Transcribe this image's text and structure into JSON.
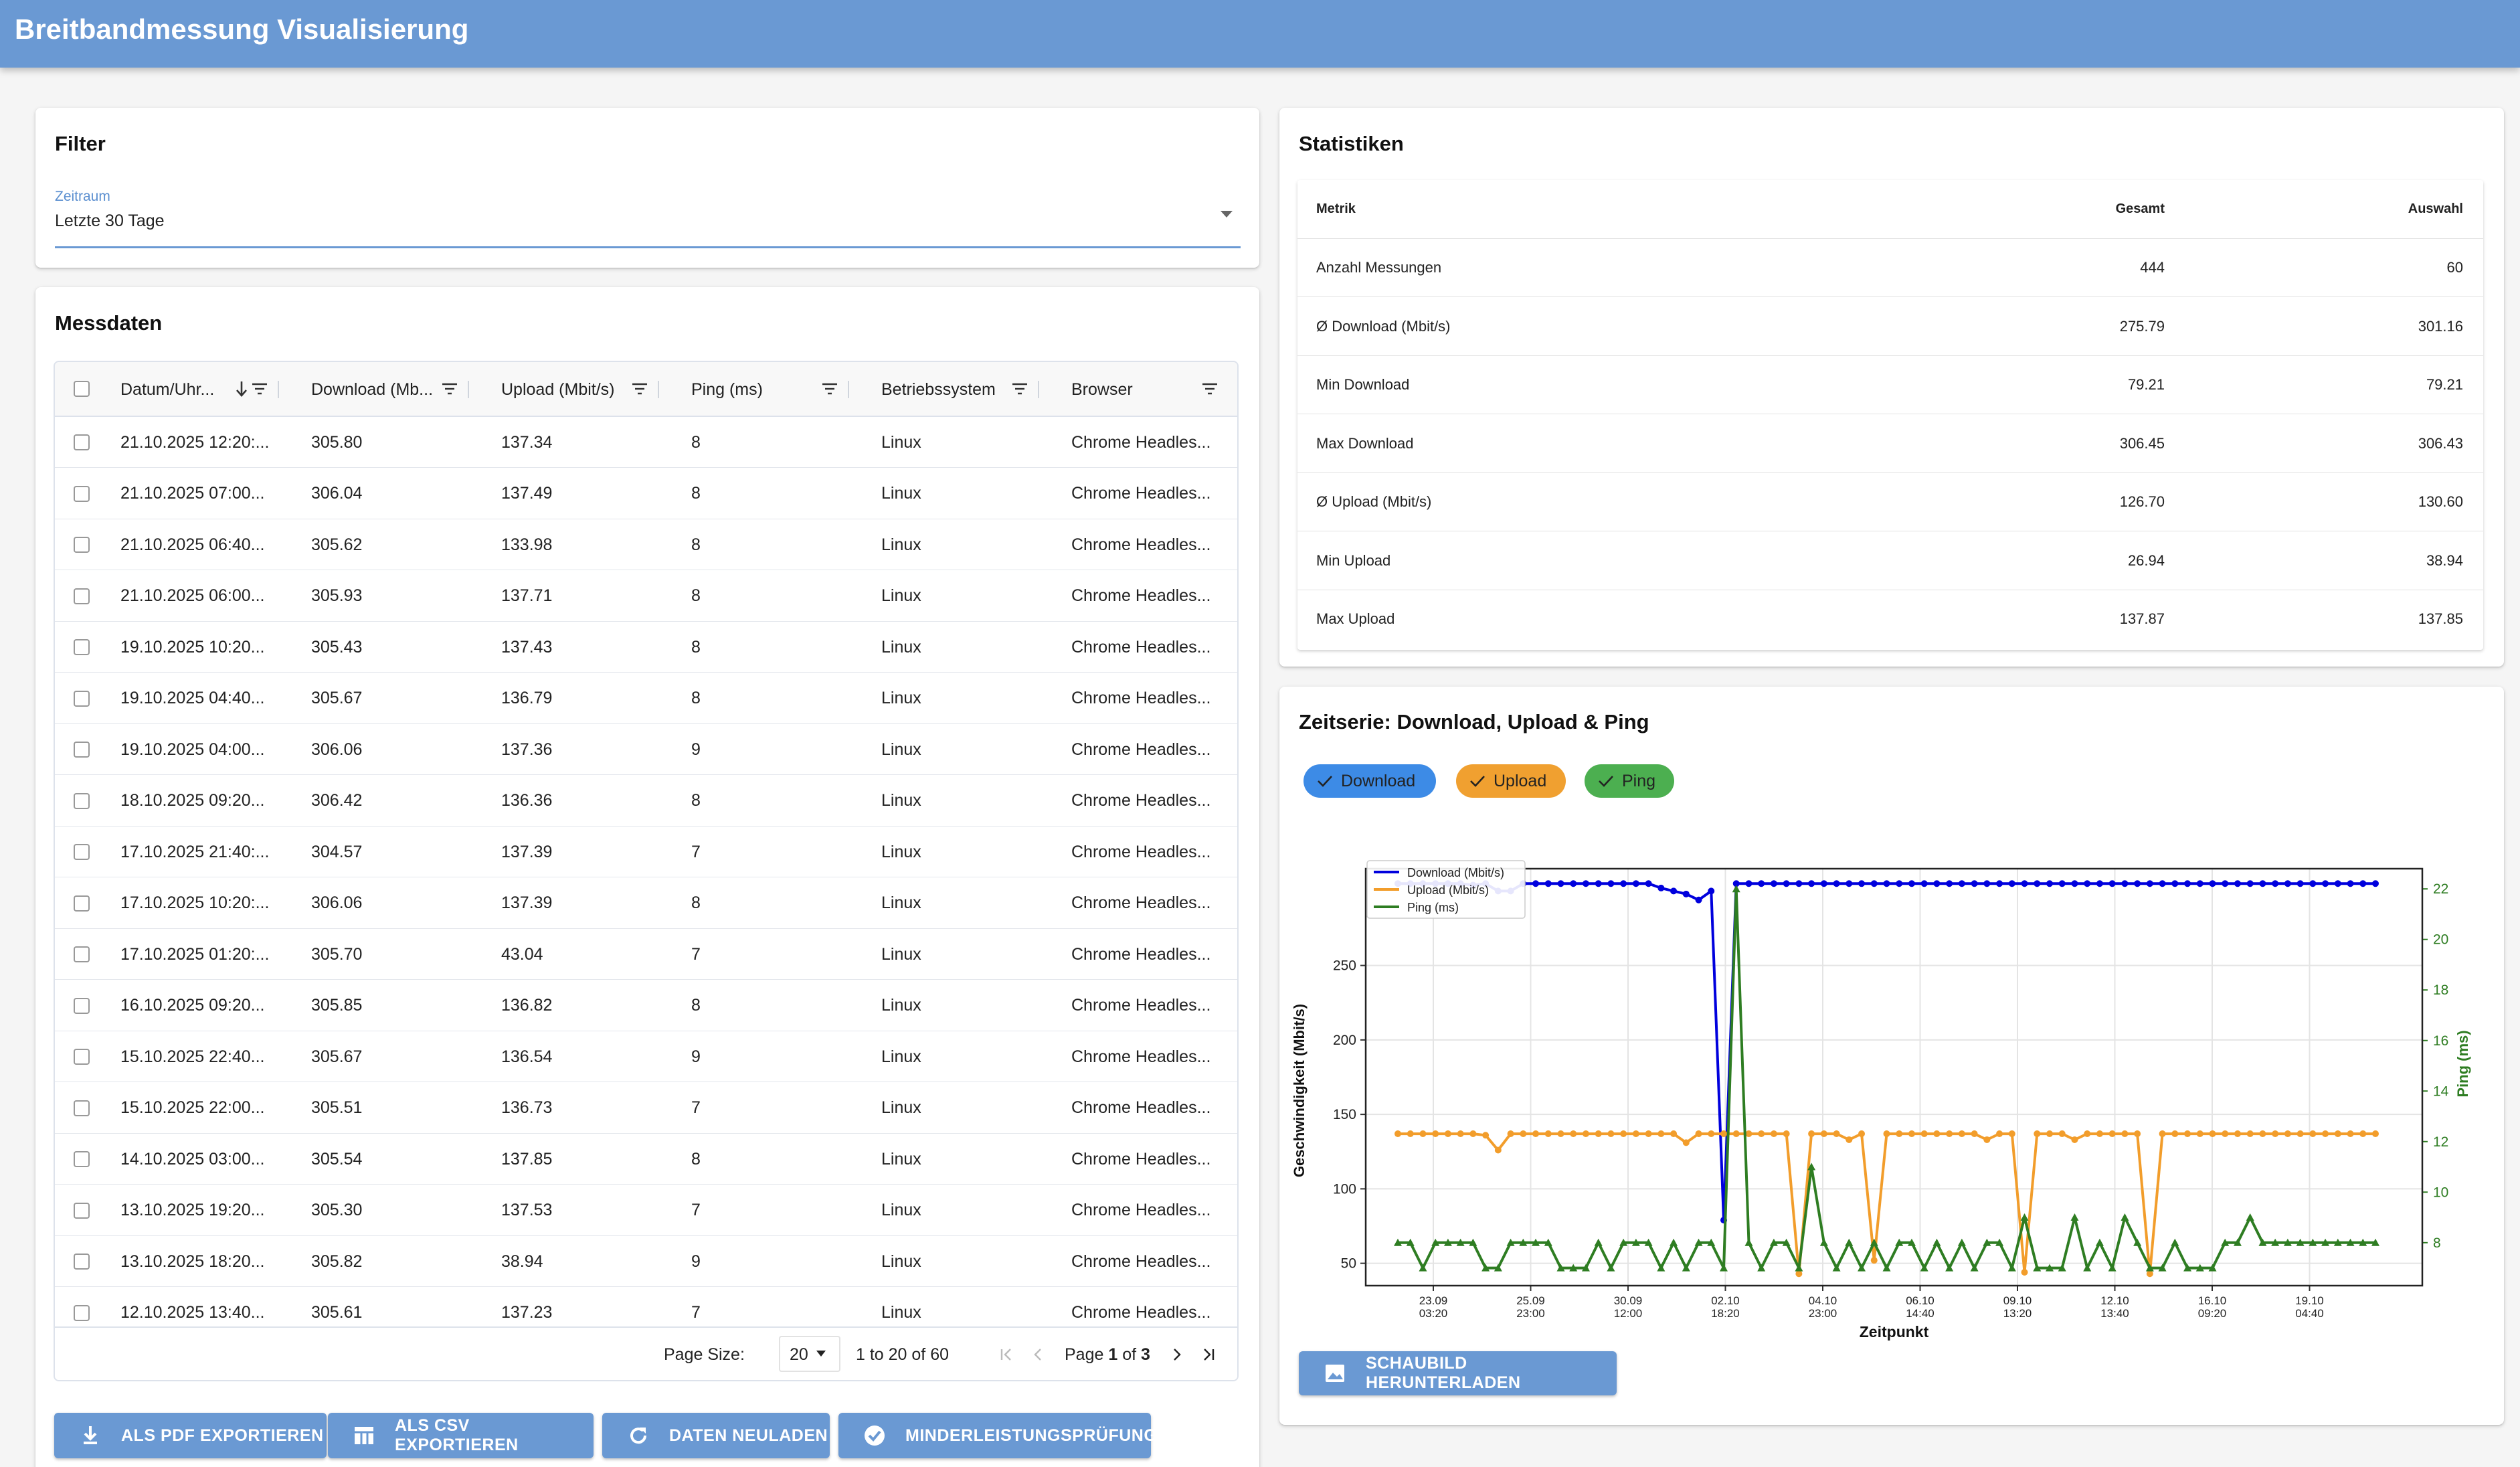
{
  "app": {
    "title": "Breitbandmessung Visualisierung"
  },
  "filter": {
    "title": "Filter",
    "label": "Zeitraum",
    "value": "Letzte 30 Tage"
  },
  "messdaten": {
    "title": "Messdaten",
    "columns": [
      "Datum/Uhr...",
      "Download (Mb...",
      "Upload (Mbit/s)",
      "Ping (ms)",
      "Betriebssystem",
      "Browser"
    ],
    "rows": [
      [
        "21.10.2025 12:20:...",
        "305.80",
        "137.34",
        "8",
        "Linux",
        "Chrome Headles..."
      ],
      [
        "21.10.2025 07:00...",
        "306.04",
        "137.49",
        "8",
        "Linux",
        "Chrome Headles..."
      ],
      [
        "21.10.2025 06:40...",
        "305.62",
        "133.98",
        "8",
        "Linux",
        "Chrome Headles..."
      ],
      [
        "21.10.2025 06:00...",
        "305.93",
        "137.71",
        "8",
        "Linux",
        "Chrome Headles..."
      ],
      [
        "19.10.2025 10:20...",
        "305.43",
        "137.43",
        "8",
        "Linux",
        "Chrome Headles..."
      ],
      [
        "19.10.2025 04:40...",
        "305.67",
        "136.79",
        "8",
        "Linux",
        "Chrome Headles..."
      ],
      [
        "19.10.2025 04:00...",
        "306.06",
        "137.36",
        "9",
        "Linux",
        "Chrome Headles..."
      ],
      [
        "18.10.2025 09:20...",
        "306.42",
        "136.36",
        "8",
        "Linux",
        "Chrome Headles..."
      ],
      [
        "17.10.2025 21:40:...",
        "304.57",
        "137.39",
        "7",
        "Linux",
        "Chrome Headles..."
      ],
      [
        "17.10.2025 10:20:...",
        "306.06",
        "137.39",
        "8",
        "Linux",
        "Chrome Headles..."
      ],
      [
        "17.10.2025 01:20:...",
        "305.70",
        "43.04",
        "7",
        "Linux",
        "Chrome Headles..."
      ],
      [
        "16.10.2025 09:20...",
        "305.85",
        "136.82",
        "8",
        "Linux",
        "Chrome Headles..."
      ],
      [
        "15.10.2025 22:40...",
        "305.67",
        "136.54",
        "9",
        "Linux",
        "Chrome Headles..."
      ],
      [
        "15.10.2025 22:00...",
        "305.51",
        "136.73",
        "7",
        "Linux",
        "Chrome Headles..."
      ],
      [
        "14.10.2025 03:00...",
        "305.54",
        "137.85",
        "8",
        "Linux",
        "Chrome Headles..."
      ],
      [
        "13.10.2025 19:20...",
        "305.30",
        "137.53",
        "7",
        "Linux",
        "Chrome Headles..."
      ],
      [
        "13.10.2025 18:20...",
        "305.82",
        "38.94",
        "9",
        "Linux",
        "Chrome Headles..."
      ],
      [
        "12.10.2025 13:40...",
        "305.61",
        "137.23",
        "7",
        "Linux",
        "Chrome Headles..."
      ]
    ],
    "pagination": {
      "page_size_label": "Page Size:",
      "page_size": "20",
      "range": "1 to 20 of 60",
      "page_prefix": "Page",
      "page_current": "1",
      "page_of": "of",
      "page_total": "3"
    }
  },
  "buttons": {
    "pdf": "ALS PDF EXPORTIEREN",
    "csv": "ALS CSV EXPORTIEREN",
    "reload": "DATEN NEULADEN",
    "check": "MINDERLEISTUNGSPRÜFUNG",
    "download_chart": "SCHAUBILD HERUNTERLADEN"
  },
  "statistiken": {
    "title": "Statistiken",
    "headers": [
      "Metrik",
      "Gesamt",
      "Auswahl"
    ],
    "rows": [
      [
        "Anzahl Messungen",
        "444",
        "60"
      ],
      [
        "Ø Download (Mbit/s)",
        "275.79",
        "301.16"
      ],
      [
        "Min Download",
        "79.21",
        "79.21"
      ],
      [
        "Max Download",
        "306.45",
        "306.43"
      ],
      [
        "Ø Upload (Mbit/s)",
        "126.70",
        "130.60"
      ],
      [
        "Min Upload",
        "26.94",
        "38.94"
      ],
      [
        "Max Upload",
        "137.87",
        "137.85"
      ]
    ]
  },
  "zeitserie": {
    "title": "Zeitserie: Download, Upload & Ping",
    "chips": [
      {
        "label": "Download",
        "color": "#3d8be6",
        "bg": "#4a90e2"
      },
      {
        "label": "Upload",
        "color": "#f0a030",
        "bg": "#f5a742"
      },
      {
        "label": "Ping",
        "color": "#4caf50",
        "bg": "#5cb85c"
      }
    ]
  },
  "colors": {
    "accent": "#6a99d3",
    "download": "#0000dd",
    "upload": "#f29d2b",
    "ping": "#2e7d22"
  },
  "chart_data": {
    "type": "line",
    "xlabel": "Zeitpunkt",
    "ylabel": "Geschwindigkeit (Mbit/s)",
    "y2label": "Ping (ms)",
    "x_ticks": [
      "23.09\n03:20",
      "25.09\n23:00",
      "30.09\n12:00",
      "02.10\n18:20",
      "04.10\n23:00",
      "06.10\n14:40",
      "09.10\n13:20",
      "12.10\n13:40",
      "16.10\n09:20",
      "19.10\n04:40"
    ],
    "yticks": [
      50,
      100,
      150,
      200,
      250
    ],
    "y2ticks": [
      8,
      10,
      12,
      14,
      16,
      18,
      20,
      22
    ],
    "ylim": [
      35,
      315
    ],
    "y2lim": [
      6.3,
      22.8
    ],
    "legend_position": "top-left",
    "grid": true,
    "series": [
      {
        "name": "Download (Mbit/s)",
        "axis": "left",
        "values": [
          305,
          305,
          305,
          305,
          305,
          305,
          304,
          305,
          300,
          300,
          305,
          305,
          305,
          305,
          305,
          305,
          305,
          305,
          305,
          305,
          305,
          302,
          300,
          298,
          294,
          300,
          79,
          305,
          305,
          305,
          305,
          305,
          305,
          305,
          305,
          305,
          305,
          305,
          305,
          305,
          305,
          305,
          305,
          305,
          305,
          305,
          305,
          305,
          305,
          305,
          305,
          305,
          305,
          305,
          305,
          305,
          305,
          305,
          305,
          305,
          305,
          305,
          305,
          305,
          305,
          305,
          305,
          305,
          305,
          305,
          305,
          305,
          305,
          305,
          305,
          305,
          305,
          305,
          305
        ]
      },
      {
        "name": "Upload (Mbit/s)",
        "axis": "left",
        "values": [
          137,
          137,
          137,
          137,
          137,
          137,
          137,
          136,
          126,
          137,
          137,
          137,
          137,
          137,
          137,
          137,
          137,
          137,
          137,
          137,
          137,
          137,
          137,
          131,
          137,
          137,
          137,
          137,
          137,
          137,
          137,
          137,
          43,
          137,
          137,
          137,
          133,
          137,
          52,
          137,
          137,
          137,
          137,
          137,
          137,
          137,
          137,
          133,
          137,
          137,
          44,
          137,
          137,
          137,
          133,
          137,
          137,
          137,
          137,
          137,
          43,
          137,
          137,
          137,
          137,
          137,
          137,
          137,
          137,
          137,
          137,
          137,
          137,
          137,
          137,
          137,
          137,
          137,
          137
        ]
      },
      {
        "name": "Ping (ms)",
        "axis": "right",
        "values": [
          8,
          8,
          7,
          8,
          8,
          8,
          8,
          7,
          7,
          8,
          8,
          8,
          8,
          7,
          7,
          7,
          8,
          7,
          8,
          8,
          8,
          7,
          8,
          7,
          8,
          8,
          7,
          22,
          8,
          7,
          8,
          8,
          7,
          11,
          8,
          7,
          8,
          7,
          8,
          7,
          8,
          8,
          7,
          8,
          7,
          8,
          7,
          8,
          8,
          7,
          9,
          7,
          7,
          7,
          9,
          7,
          8,
          7,
          9,
          8,
          7,
          7,
          8,
          7,
          7,
          7,
          8,
          8,
          9,
          8,
          8,
          8,
          8,
          8,
          8,
          8,
          8,
          8,
          8
        ]
      }
    ]
  }
}
